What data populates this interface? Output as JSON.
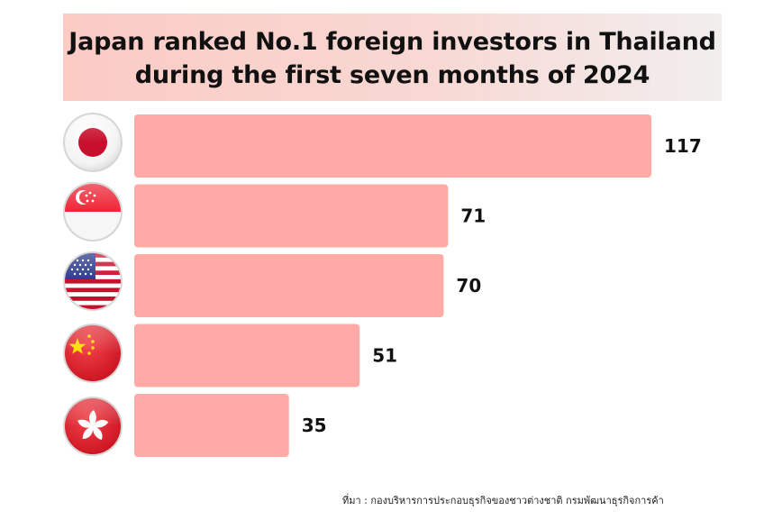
{
  "title": "Japan ranked No.1 foreign investors in Thailand during the first seven months of 2024",
  "source": "ที่มา : กองบริหารการประกอบธุรกิจของชาวต่างชาติ กรมพัฒนาธุรกิจการค้า",
  "colors": {
    "bar": "#ffaaa4",
    "title_bg": "#fbcbc4"
  },
  "chart_data": {
    "type": "bar",
    "orientation": "horizontal",
    "categories": [
      "Japan",
      "Singapore",
      "United States",
      "China",
      "Hong Kong"
    ],
    "category_icons": [
      "japan-flag-icon",
      "singapore-flag-icon",
      "usa-flag-icon",
      "china-flag-icon",
      "hong-kong-flag-icon"
    ],
    "values": [
      117,
      71,
      70,
      51,
      35
    ],
    "data_labels": [
      "117",
      "71",
      "70",
      "51",
      "35"
    ],
    "title": "Japan ranked No.1 foreign investors in Thailand during the first seven months of 2024",
    "xlabel": "",
    "ylabel": "",
    "xlim": [
      0,
      117
    ],
    "grid": false,
    "legend": "none"
  }
}
